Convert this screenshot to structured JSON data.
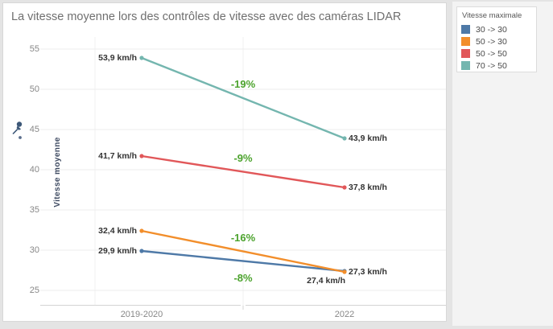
{
  "title": "La vitesse moyenne lors des contrôles de vitesse avec des caméras LIDAR",
  "legend": {
    "title": "Vitesse maximale",
    "items": [
      {
        "label": "30 -> 30",
        "color": "#4e79a7"
      },
      {
        "label": "50 -> 30",
        "color": "#f28e2b"
      },
      {
        "label": "50 -> 50",
        "color": "#e15759"
      },
      {
        "label": "70 -> 50",
        "color": "#74b6af"
      }
    ]
  },
  "chart_data": {
    "type": "line",
    "title": "La vitesse moyenne lors des contrôles de vitesse avec des caméras LIDAR",
    "categories": [
      "2019-2020",
      "2022"
    ],
    "series": [
      {
        "name": "30 -> 30",
        "color": "#4e79a7",
        "values": [
          29.9,
          27.4
        ],
        "point_labels": [
          "29,9 km/h",
          "27,4 km/h"
        ],
        "change_label": "-8%"
      },
      {
        "name": "50 -> 30",
        "color": "#f28e2b",
        "values": [
          32.4,
          27.3
        ],
        "point_labels": [
          "32,4 km/h",
          "27,3 km/h"
        ],
        "change_label": "-16%"
      },
      {
        "name": "50 -> 50",
        "color": "#e15759",
        "values": [
          41.7,
          37.8
        ],
        "point_labels": [
          "41,7 km/h",
          "37,8 km/h"
        ],
        "change_label": "-9%"
      },
      {
        "name": "70 -> 50",
        "color": "#74b6af",
        "values": [
          53.9,
          43.9
        ],
        "point_labels": [
          "53,9 km/h",
          "43,9 km/h"
        ],
        "change_label": "-19%"
      }
    ],
    "xlabel": "",
    "ylabel": "Vitesse moyenne",
    "yticks": [
      25,
      30,
      35,
      40,
      45,
      50,
      55
    ],
    "ylim": [
      23.2,
      56.5
    ],
    "grid": "horizontal",
    "legend_position": "top-right",
    "change_label_color": "#4ca32d"
  }
}
